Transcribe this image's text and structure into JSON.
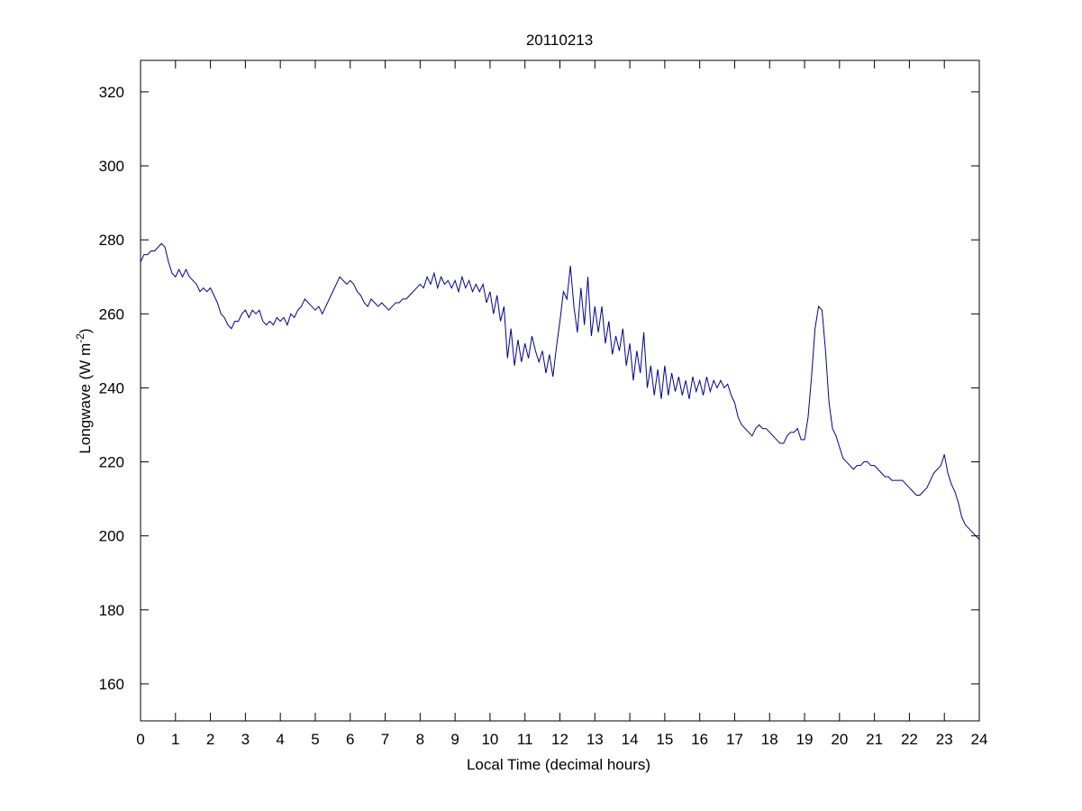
{
  "chart_data": {
    "type": "line",
    "title": "20110213",
    "x_label": "Local Time (decimal hours)",
    "y_label": "Longwave (W m",
    "y_label_superscript": "-2",
    "y_label_end": ")",
    "color": "#000099",
    "xlim": [
      0,
      24
    ],
    "xticks": [
      0,
      1,
      2,
      3,
      4,
      5,
      6,
      7,
      8,
      9,
      10,
      11,
      12,
      13,
      14,
      15,
      16,
      17,
      18,
      19,
      20,
      21,
      22,
      23,
      24
    ],
    "ylim": [
      150,
      328.5
    ],
    "yticks": [
      160,
      180,
      200,
      220,
      240,
      260,
      280,
      300,
      320
    ],
    "x": [
      0,
      0.1,
      0.2,
      0.3,
      0.4,
      0.5,
      0.6,
      0.7,
      0.8,
      0.9,
      1,
      1.1,
      1.2,
      1.3,
      1.4,
      1.5,
      1.6,
      1.7,
      1.8,
      1.9,
      2,
      2.1,
      2.2,
      2.3,
      2.4,
      2.5,
      2.6,
      2.7,
      2.8,
      2.9,
      3,
      3.1,
      3.2,
      3.3,
      3.4,
      3.5,
      3.6,
      3.7,
      3.8,
      3.9,
      4,
      4.1,
      4.2,
      4.3,
      4.4,
      4.5,
      4.6,
      4.7,
      4.8,
      4.9,
      5,
      5.1,
      5.2,
      5.3,
      5.4,
      5.5,
      5.6,
      5.7,
      5.8,
      5.9,
      6,
      6.1,
      6.2,
      6.3,
      6.4,
      6.5,
      6.6,
      6.7,
      6.8,
      6.9,
      7,
      7.1,
      7.2,
      7.3,
      7.4,
      7.5,
      7.6,
      7.7,
      7.8,
      7.9,
      8,
      8.1,
      8.2,
      8.3,
      8.4,
      8.5,
      8.6,
      8.7,
      8.8,
      8.9,
      9,
      9.1,
      9.2,
      9.3,
      9.4,
      9.5,
      9.6,
      9.7,
      9.8,
      9.9,
      10,
      10.1,
      10.2,
      10.3,
      10.4,
      10.5,
      10.6,
      10.7,
      10.8,
      10.9,
      11,
      11.1,
      11.2,
      11.3,
      11.4,
      11.5,
      11.6,
      11.7,
      11.8,
      11.9,
      12,
      12.1,
      12.2,
      12.3,
      12.4,
      12.5,
      12.6,
      12.7,
      12.8,
      12.9,
      13,
      13.1,
      13.2,
      13.3,
      13.4,
      13.5,
      13.6,
      13.7,
      13.8,
      13.9,
      14,
      14.1,
      14.2,
      14.3,
      14.4,
      14.5,
      14.6,
      14.7,
      14.8,
      14.9,
      15,
      15.1,
      15.2,
      15.3,
      15.4,
      15.5,
      15.6,
      15.7,
      15.8,
      15.9,
      16,
      16.1,
      16.2,
      16.3,
      16.4,
      16.5,
      16.6,
      16.7,
      16.8,
      16.9,
      17,
      17.1,
      17.2,
      17.3,
      17.4,
      17.5,
      17.6,
      17.7,
      17.8,
      17.9,
      18,
      18.1,
      18.2,
      18.3,
      18.4,
      18.5,
      18.6,
      18.7,
      18.8,
      18.9,
      19,
      19.1,
      19.2,
      19.3,
      19.4,
      19.5,
      19.6,
      19.7,
      19.8,
      19.9,
      20,
      20.1,
      20.2,
      20.3,
      20.4,
      20.5,
      20.6,
      20.7,
      20.8,
      20.9,
      21,
      21.1,
      21.2,
      21.3,
      21.4,
      21.5,
      21.6,
      21.7,
      21.8,
      21.9,
      22,
      22.1,
      22.2,
      22.3,
      22.4,
      22.5,
      22.6,
      22.7,
      22.8,
      22.9,
      23,
      23.1,
      23.2,
      23.3,
      23.4,
      23.5,
      23.6,
      23.7,
      23.8,
      23.9,
      24
    ],
    "values": [
      274,
      276,
      276,
      277,
      277,
      278,
      279,
      278,
      274,
      271,
      270,
      272,
      270,
      272,
      270,
      269,
      268,
      266,
      267,
      266,
      267,
      265,
      263,
      260,
      259,
      257,
      256,
      258,
      258,
      260,
      261,
      259,
      261,
      260,
      261,
      258,
      257,
      258,
      257,
      259,
      258,
      259,
      257,
      260,
      259,
      261,
      262,
      264,
      263,
      262,
      261,
      262,
      260,
      262,
      264,
      266,
      268,
      270,
      269,
      268,
      269,
      268,
      266,
      265,
      263,
      262,
      264,
      263,
      262,
      263,
      262,
      261,
      262,
      263,
      263,
      264,
      264,
      265,
      266,
      267,
      268,
      267,
      270,
      268,
      271,
      267,
      270,
      268,
      269,
      267,
      269,
      266,
      270,
      267,
      269,
      266,
      268,
      266,
      268,
      263,
      266,
      260,
      265,
      258,
      262,
      248,
      256,
      246,
      253,
      247,
      252,
      248,
      254,
      250,
      247,
      250,
      244,
      249,
      243,
      251,
      258,
      266,
      264,
      273,
      262,
      255,
      267,
      257,
      270,
      254,
      262,
      255,
      262,
      252,
      258,
      249,
      254,
      250,
      256,
      246,
      252,
      242,
      250,
      244,
      255,
      240,
      246,
      238,
      245,
      237,
      246,
      238,
      244,
      239,
      243,
      238,
      242,
      237,
      243,
      239,
      242,
      238,
      243,
      239,
      242,
      240,
      242,
      240,
      241,
      238,
      236,
      232,
      230,
      229,
      228,
      227,
      229,
      230,
      229,
      229,
      228,
      227,
      226,
      225,
      225,
      227,
      228,
      228,
      229,
      226,
      226,
      232,
      243,
      256,
      262,
      261,
      250,
      236,
      229,
      227,
      224,
      221,
      220,
      219,
      218,
      219,
      219,
      220,
      220,
      219,
      219,
      218,
      217,
      216,
      216,
      215,
      215,
      215,
      215,
      214,
      213,
      212,
      211,
      211,
      212,
      213,
      215,
      217,
      218,
      219,
      222,
      217,
      214,
      212,
      209,
      205,
      203,
      202,
      201,
      200,
      199
    ]
  }
}
